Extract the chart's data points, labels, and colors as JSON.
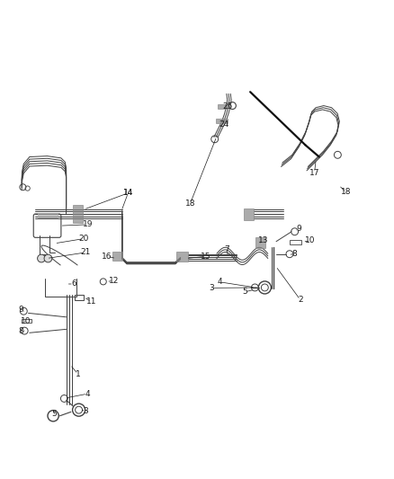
{
  "bg_color": "#ffffff",
  "line_color": "#404040",
  "label_color": "#1a1a1a",
  "fig_width": 4.38,
  "fig_height": 5.33,
  "dpi": 100
}
